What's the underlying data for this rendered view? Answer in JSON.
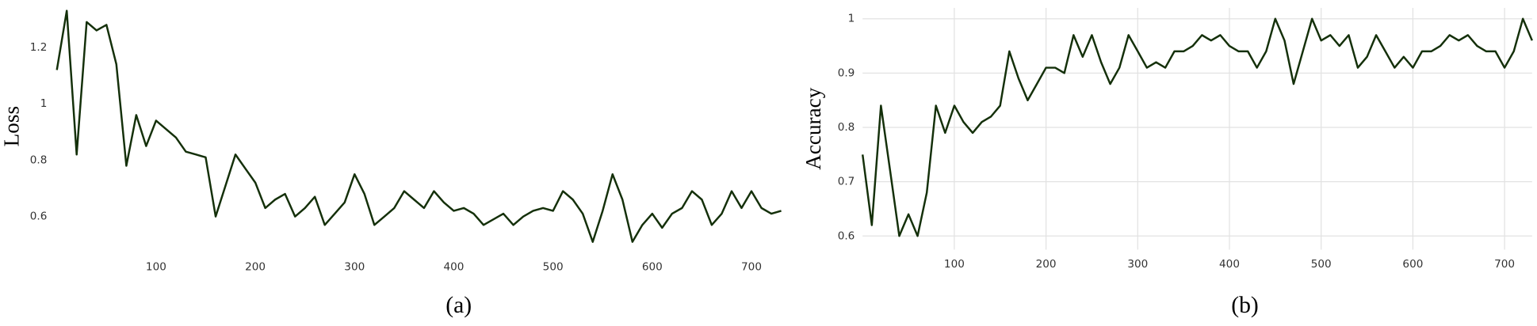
{
  "chart_data": [
    {
      "type": "line",
      "ylabel": "Loss",
      "caption": "(a)",
      "grid": false,
      "color": "#14300a",
      "x": [
        0,
        10,
        20,
        30,
        40,
        50,
        60,
        70,
        80,
        90,
        100,
        110,
        120,
        130,
        140,
        150,
        160,
        170,
        180,
        190,
        200,
        210,
        220,
        230,
        240,
        250,
        260,
        270,
        280,
        290,
        300,
        310,
        320,
        330,
        340,
        350,
        360,
        370,
        380,
        390,
        400,
        410,
        420,
        430,
        440,
        450,
        460,
        470,
        480,
        490,
        500,
        510,
        520,
        530,
        540,
        550,
        560,
        570,
        580,
        590,
        600,
        610,
        620,
        630,
        640,
        650,
        660,
        670,
        680,
        690,
        700,
        710,
        720,
        730
      ],
      "values": [
        1.12,
        1.33,
        0.82,
        1.29,
        1.26,
        1.28,
        1.14,
        0.78,
        0.96,
        0.85,
        0.94,
        0.91,
        0.88,
        0.83,
        0.82,
        0.81,
        0.6,
        0.71,
        0.82,
        0.77,
        0.72,
        0.63,
        0.66,
        0.68,
        0.6,
        0.63,
        0.67,
        0.57,
        0.61,
        0.65,
        0.75,
        0.68,
        0.57,
        0.6,
        0.63,
        0.69,
        0.66,
        0.63,
        0.69,
        0.65,
        0.62,
        0.63,
        0.61,
        0.57,
        0.59,
        0.61,
        0.57,
        0.6,
        0.62,
        0.63,
        0.62,
        0.69,
        0.66,
        0.61,
        0.51,
        0.62,
        0.75,
        0.66,
        0.51,
        0.57,
        0.61,
        0.56,
        0.61,
        0.63,
        0.69,
        0.66,
        0.57,
        0.61,
        0.69,
        0.63,
        0.69,
        0.63,
        0.61,
        0.62
      ],
      "xlim": [
        0,
        730
      ],
      "ylim": [
        0.5,
        1.34
      ],
      "xticks": [
        100,
        200,
        300,
        400,
        500,
        600,
        700
      ],
      "yticks": [
        0.6,
        0.8,
        1,
        1.2
      ]
    },
    {
      "type": "line",
      "ylabel": "Accuracy",
      "caption": "(b)",
      "grid": true,
      "color": "#14300a",
      "x": [
        0,
        10,
        20,
        30,
        40,
        50,
        60,
        70,
        80,
        90,
        100,
        110,
        120,
        130,
        140,
        150,
        160,
        170,
        180,
        190,
        200,
        210,
        220,
        230,
        240,
        250,
        260,
        270,
        280,
        290,
        300,
        310,
        320,
        330,
        340,
        350,
        360,
        370,
        380,
        390,
        400,
        410,
        420,
        430,
        440,
        450,
        460,
        470,
        480,
        490,
        500,
        510,
        520,
        530,
        540,
        550,
        560,
        570,
        580,
        590,
        600,
        610,
        620,
        630,
        640,
        650,
        660,
        670,
        680,
        690,
        700,
        710,
        720,
        730
      ],
      "values": [
        0.75,
        0.62,
        0.84,
        0.72,
        0.6,
        0.64,
        0.6,
        0.68,
        0.84,
        0.79,
        0.84,
        0.81,
        0.79,
        0.81,
        0.82,
        0.84,
        0.94,
        0.89,
        0.85,
        0.88,
        0.91,
        0.91,
        0.9,
        0.97,
        0.93,
        0.97,
        0.92,
        0.88,
        0.91,
        0.97,
        0.94,
        0.91,
        0.92,
        0.91,
        0.94,
        0.94,
        0.95,
        0.97,
        0.96,
        0.97,
        0.95,
        0.94,
        0.94,
        0.91,
        0.94,
        1,
        0.96,
        0.88,
        0.94,
        1,
        0.96,
        0.97,
        0.95,
        0.97,
        0.91,
        0.93,
        0.97,
        0.94,
        0.91,
        0.93,
        0.91,
        0.94,
        0.94,
        0.95,
        0.97,
        0.96,
        0.97,
        0.95,
        0.94,
        0.94,
        0.91,
        0.94,
        1,
        0.96
      ],
      "xlim": [
        0,
        730
      ],
      "ylim": [
        0.575,
        1.02
      ],
      "xticks": [
        100,
        200,
        300,
        400,
        500,
        600,
        700
      ],
      "yticks": [
        0.6,
        0.7,
        0.8,
        0.9,
        1
      ]
    }
  ]
}
